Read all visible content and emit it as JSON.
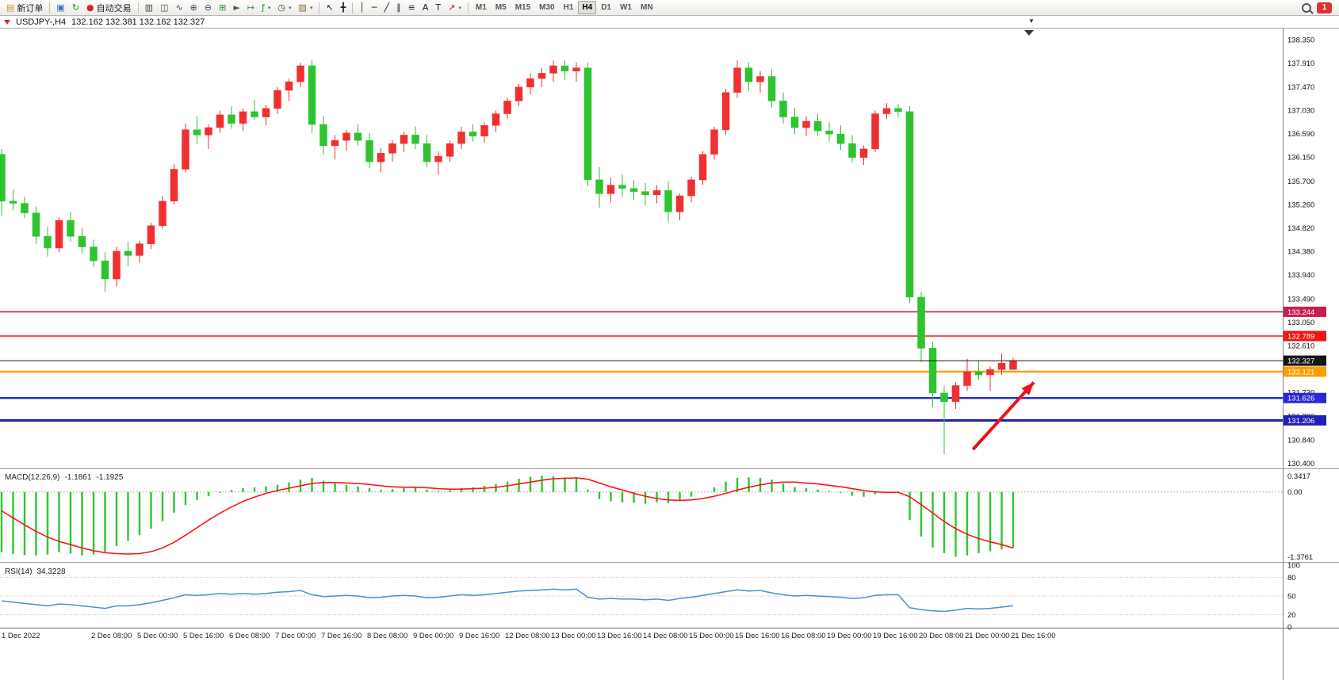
{
  "toolbar": {
    "new_order_label": "新订单",
    "autotrading_label": "自动交易",
    "notifications_count": "1",
    "timeframes": [
      "M1",
      "M5",
      "M15",
      "M30",
      "H1",
      "H4",
      "D1",
      "W1",
      "MN"
    ],
    "active_timeframe": "H4",
    "items": [
      {
        "type": "button",
        "name": "new-order-button",
        "icon": "new-order-icon",
        "glyph": "▤",
        "glyph_color": "#c59b2d",
        "label": "新订单"
      },
      {
        "type": "separator"
      },
      {
        "type": "button",
        "name": "charts-window-button",
        "icon": "chart-window-icon",
        "glyph": "▣",
        "glyph_color": "#3a6fc0"
      },
      {
        "type": "button",
        "name": "refresh-button",
        "icon": "refresh-icon",
        "glyph": "↻",
        "glyph_color": "#1f9e1f"
      },
      {
        "type": "button",
        "name": "autotrading-button",
        "icon": "autotrading-icon",
        "glyph": "●",
        "glyph_color": "#d42a2a",
        "label": "自动交易"
      },
      {
        "type": "separator"
      },
      {
        "type": "button",
        "name": "bar-chart-button",
        "icon": "bar-chart-icon",
        "glyph": "▥",
        "glyph_color": "#444444"
      },
      {
        "type": "button",
        "name": "candlestick-chart-button",
        "icon": "candlestick-icon",
        "glyph": "◫",
        "glyph_color": "#444444"
      },
      {
        "type": "button",
        "name": "line-chart-button",
        "icon": "line-chart-icon",
        "glyph": "∿",
        "glyph_color": "#444444"
      },
      {
        "type": "button",
        "name": "zoom-in-button",
        "icon": "zoom-in-icon",
        "glyph": "⊕",
        "glyph_color": "#444444"
      },
      {
        "type": "button",
        "name": "zoom-out-button",
        "icon": "zoom-out-icon",
        "glyph": "⊖",
        "glyph_color": "#444444"
      },
      {
        "type": "button",
        "name": "tile-windows-button",
        "icon": "tile-windows-icon",
        "glyph": "⊞",
        "glyph_color": "#2f8f2f"
      },
      {
        "type": "button",
        "name": "auto-scroll-button",
        "icon": "auto-scroll-icon",
        "glyph": "►",
        "glyph_color": "#555555"
      },
      {
        "type": "button",
        "name": "chart-shift-button",
        "icon": "chart-shift-icon",
        "glyph": "↦",
        "glyph_color": "#2f8f2f"
      },
      {
        "type": "button",
        "name": "indicators-button",
        "icon": "indicators-icon",
        "glyph": "ƒ",
        "glyph_color": "#1f9e1f",
        "caret": true
      },
      {
        "type": "button",
        "name": "periods-button",
        "icon": "clock-icon",
        "glyph": "◷",
        "glyph_color": "#444444",
        "caret": true
      },
      {
        "type": "button",
        "name": "templates-button",
        "icon": "template-icon",
        "glyph": "▧",
        "glyph_color": "#8a6d3b",
        "caret": true
      },
      {
        "type": "separator"
      },
      {
        "type": "button",
        "name": "cursor-button",
        "icon": "cursor-icon",
        "glyph": "↖",
        "glyph_color": "#222222"
      },
      {
        "type": "button",
        "name": "crosshair-button",
        "icon": "crosshair-icon",
        "glyph": "╋",
        "glyph_color": "#222222"
      },
      {
        "type": "separator"
      },
      {
        "type": "button",
        "name": "vertical-line-button",
        "icon": "vertical-line-icon",
        "glyph": "│",
        "glyph_color": "#222222"
      },
      {
        "type": "button",
        "name": "horizontal-line-button",
        "icon": "horizontal-line-icon",
        "glyph": "─",
        "glyph_color": "#222222"
      },
      {
        "type": "button",
        "name": "trendline-button",
        "icon": "trendline-icon",
        "glyph": "╱",
        "glyph_color": "#222222"
      },
      {
        "type": "button",
        "name": "channel-button",
        "icon": "channel-icon",
        "glyph": "∥",
        "glyph_color": "#222222"
      },
      {
        "type": "button",
        "name": "fibonacci-button",
        "icon": "fibonacci-icon",
        "glyph": "≡",
        "glyph_color": "#222222"
      },
      {
        "type": "button",
        "name": "text-button",
        "icon": "text-icon",
        "glyph": "A",
        "glyph_color": "#222222"
      },
      {
        "type": "button",
        "name": "text-label-button",
        "icon": "text-label-icon",
        "glyph": "T",
        "glyph_color": "#222222"
      },
      {
        "type": "button",
        "name": "arrows-button",
        "icon": "arrow-shapes-icon",
        "glyph": "↗",
        "glyph_color": "#b22222",
        "caret": true
      },
      {
        "type": "separator"
      }
    ]
  },
  "chart_header": {
    "symbol_period": "USDJPY-,H4",
    "ohlc": "132.162 132.381 132.162 132.327"
  },
  "chart_data": {
    "type": "candlestick",
    "symbol": "USDJPY-",
    "period": "H4",
    "colors": {
      "up": "#f03030",
      "down": "#2fc42f",
      "macd_histogram": "#2fc42f",
      "macd_signal": "#ff1414",
      "rsi_line": "#4a8fd4",
      "arrow": "#e81414"
    },
    "price_axis_labels": [
      "138.350",
      "137.910",
      "137.470",
      "137.030",
      "136.590",
      "136.150",
      "135.700",
      "135.260",
      "134.820",
      "134.380",
      "133.940",
      "133.490",
      "133.050",
      "132.610",
      "132.170",
      "131.730",
      "131.290",
      "130.840",
      "130.400"
    ],
    "hlines": [
      {
        "name": "resistance-line-1",
        "price": 133.244,
        "label": "133.244",
        "color": "#c81e50",
        "width": 1.6
      },
      {
        "name": "resistance-line-2",
        "price": 132.789,
        "label": "132.789",
        "color": "#f01515",
        "width": 1.6
      },
      {
        "name": "support-line-orange",
        "price": 132.121,
        "label": "132.121",
        "color": "#ff9c00",
        "width": 2.4
      },
      {
        "name": "support-line-1",
        "price": 131.626,
        "label": "131.626",
        "color": "#2828d8",
        "width": 2.4
      },
      {
        "name": "support-line-2",
        "price": 131.206,
        "label": "131.206",
        "color": "#2020b8",
        "width": 3
      }
    ],
    "current_price": {
      "price": 132.327,
      "label": "132.327",
      "color": "#141414"
    },
    "candles": [
      [
        136.2,
        136.3,
        135.05,
        135.32
      ],
      [
        135.32,
        135.55,
        135.15,
        135.28
      ],
      [
        135.28,
        135.4,
        135.0,
        135.1
      ],
      [
        135.1,
        135.22,
        134.52,
        134.66
      ],
      [
        134.66,
        134.84,
        134.28,
        134.44
      ],
      [
        134.44,
        135.02,
        134.36,
        134.96
      ],
      [
        134.96,
        135.12,
        134.56,
        134.66
      ],
      [
        134.66,
        134.82,
        134.34,
        134.46
      ],
      [
        134.46,
        134.6,
        134.08,
        134.2
      ],
      [
        134.2,
        134.36,
        133.62,
        133.86
      ],
      [
        133.86,
        134.46,
        133.72,
        134.38
      ],
      [
        134.38,
        134.56,
        134.1,
        134.3
      ],
      [
        134.3,
        134.58,
        134.16,
        134.52
      ],
      [
        134.52,
        134.92,
        134.42,
        134.86
      ],
      [
        134.86,
        135.42,
        134.8,
        135.32
      ],
      [
        135.32,
        136.02,
        135.26,
        135.92
      ],
      [
        135.92,
        136.78,
        135.86,
        136.66
      ],
      [
        136.66,
        136.92,
        136.4,
        136.56
      ],
      [
        136.56,
        136.76,
        136.3,
        136.7
      ],
      [
        136.7,
        137.02,
        136.6,
        136.94
      ],
      [
        136.94,
        137.1,
        136.68,
        136.78
      ],
      [
        136.78,
        137.06,
        136.64,
        137.0
      ],
      [
        137.0,
        137.22,
        136.84,
        136.9
      ],
      [
        136.9,
        137.12,
        136.74,
        137.06
      ],
      [
        137.06,
        137.46,
        136.96,
        137.4
      ],
      [
        137.4,
        137.62,
        137.2,
        137.56
      ],
      [
        137.56,
        137.92,
        137.46,
        137.86
      ],
      [
        137.86,
        137.96,
        136.6,
        136.76
      ],
      [
        136.76,
        136.92,
        136.2,
        136.36
      ],
      [
        136.36,
        136.56,
        136.1,
        136.46
      ],
      [
        136.46,
        136.66,
        136.26,
        136.6
      ],
      [
        136.6,
        136.76,
        136.36,
        136.46
      ],
      [
        136.46,
        136.6,
        135.94,
        136.06
      ],
      [
        136.06,
        136.32,
        135.86,
        136.22
      ],
      [
        136.22,
        136.46,
        136.06,
        136.4
      ],
      [
        136.4,
        136.62,
        136.24,
        136.56
      ],
      [
        136.56,
        136.72,
        136.3,
        136.4
      ],
      [
        136.4,
        136.56,
        135.96,
        136.06
      ],
      [
        136.06,
        136.26,
        135.82,
        136.16
      ],
      [
        136.16,
        136.46,
        136.06,
        136.4
      ],
      [
        136.4,
        136.72,
        136.3,
        136.62
      ],
      [
        136.62,
        136.76,
        136.44,
        136.54
      ],
      [
        136.54,
        136.8,
        136.42,
        136.74
      ],
      [
        136.74,
        137.02,
        136.62,
        136.96
      ],
      [
        136.96,
        137.26,
        136.86,
        137.2
      ],
      [
        137.2,
        137.52,
        137.1,
        137.46
      ],
      [
        137.46,
        137.72,
        137.32,
        137.62
      ],
      [
        137.62,
        137.82,
        137.46,
        137.72
      ],
      [
        137.72,
        137.96,
        137.56,
        137.86
      ],
      [
        137.86,
        137.96,
        137.6,
        137.76
      ],
      [
        137.76,
        137.92,
        137.56,
        137.82
      ],
      [
        137.82,
        137.92,
        135.6,
        135.72
      ],
      [
        135.72,
        135.96,
        135.2,
        135.46
      ],
      [
        135.46,
        135.76,
        135.3,
        135.62
      ],
      [
        135.62,
        135.82,
        135.4,
        135.56
      ],
      [
        135.56,
        135.72,
        135.34,
        135.5
      ],
      [
        135.5,
        135.66,
        135.24,
        135.44
      ],
      [
        135.44,
        135.62,
        135.28,
        135.52
      ],
      [
        135.52,
        135.7,
        134.94,
        135.12
      ],
      [
        135.12,
        135.46,
        134.96,
        135.42
      ],
      [
        135.42,
        135.78,
        135.3,
        135.72
      ],
      [
        135.72,
        136.26,
        135.62,
        136.2
      ],
      [
        136.2,
        136.72,
        136.1,
        136.66
      ],
      [
        136.66,
        137.42,
        136.56,
        137.36
      ],
      [
        137.36,
        137.96,
        137.26,
        137.82
      ],
      [
        137.82,
        137.92,
        137.4,
        137.56
      ],
      [
        137.56,
        137.76,
        137.36,
        137.66
      ],
      [
        137.66,
        137.8,
        137.08,
        137.2
      ],
      [
        137.2,
        137.36,
        136.78,
        136.9
      ],
      [
        136.9,
        137.06,
        136.58,
        136.7
      ],
      [
        136.7,
        136.92,
        136.54,
        136.82
      ],
      [
        136.82,
        136.96,
        136.54,
        136.64
      ],
      [
        136.64,
        136.8,
        136.44,
        136.58
      ],
      [
        136.58,
        136.74,
        136.28,
        136.4
      ],
      [
        136.4,
        136.56,
        136.04,
        136.14
      ],
      [
        136.14,
        136.36,
        136.0,
        136.3
      ],
      [
        136.3,
        137.02,
        136.24,
        136.96
      ],
      [
        136.96,
        137.16,
        136.86,
        137.06
      ],
      [
        137.06,
        137.14,
        136.9,
        137.0
      ],
      [
        137.0,
        137.1,
        133.4,
        133.52
      ],
      [
        133.52,
        133.62,
        132.3,
        132.56
      ],
      [
        132.56,
        132.68,
        131.46,
        131.72
      ],
      [
        131.72,
        131.86,
        130.57,
        131.56
      ],
      [
        131.56,
        131.92,
        131.42,
        131.86
      ],
      [
        131.86,
        132.36,
        131.76,
        132.12
      ],
      [
        132.12,
        132.32,
        131.96,
        132.06
      ],
      [
        132.06,
        132.22,
        131.76,
        132.16
      ],
      [
        132.16,
        132.46,
        132.06,
        132.28
      ],
      [
        132.162,
        132.381,
        132.162,
        132.327
      ]
    ],
    "time_labels": [
      [
        0,
        "1 Dec 2022"
      ],
      [
        8,
        "2 Dec 08:00"
      ],
      [
        12,
        "5 Dec 00:00"
      ],
      [
        16,
        "5 Dec 16:00"
      ],
      [
        20,
        "6 Dec 08:00"
      ],
      [
        24,
        "7 Dec 00:00"
      ],
      [
        28,
        "7 Dec 16:00"
      ],
      [
        32,
        "8 Dec 08:00"
      ],
      [
        36,
        "9 Dec 00:00"
      ],
      [
        40,
        "9 Dec 16:00"
      ],
      [
        44,
        "12 Dec 08:00"
      ],
      [
        48,
        "13 Dec 00:00"
      ],
      [
        52,
        "13 Dec 16:00"
      ],
      [
        56,
        "14 Dec 08:00"
      ],
      [
        60,
        "15 Dec 00:00"
      ],
      [
        64,
        "15 Dec 16:00"
      ],
      [
        68,
        "16 Dec 08:00"
      ],
      [
        72,
        "19 Dec 00:00"
      ],
      [
        76,
        "19 Dec 16:00"
      ],
      [
        80,
        "20 Dec 08:00"
      ],
      [
        84,
        "21 Dec 00:00"
      ],
      [
        88,
        "21 Dec 16:00"
      ]
    ],
    "macd": {
      "title": "MACD(12,26,9)",
      "value_main": "-1.1861",
      "value_signal": "-1.1925",
      "axis_labels": [
        {
          "v": 0.3417,
          "t": "0.3417"
        },
        {
          "v": 0,
          "t": "0.00"
        },
        {
          "v": -1.3761,
          "t": "-1.3761"
        }
      ],
      "histogram": [
        -1.28,
        -1.32,
        -1.34,
        -1.35,
        -1.33,
        -1.28,
        -1.31,
        -1.35,
        -1.33,
        -1.27,
        -1.15,
        -1.04,
        -0.92,
        -0.78,
        -0.62,
        -0.44,
        -0.28,
        -0.17,
        -0.09,
        -0.02,
        0.04,
        0.08,
        0.1,
        0.12,
        0.15,
        0.2,
        0.26,
        0.3,
        0.24,
        0.18,
        0.15,
        0.12,
        0.08,
        0.05,
        0.06,
        0.08,
        0.09,
        0.05,
        0.02,
        0.04,
        0.08,
        0.1,
        0.13,
        0.17,
        0.22,
        0.28,
        0.32,
        0.3417,
        0.33,
        0.31,
        0.29,
        0.05,
        -0.15,
        -0.2,
        -0.22,
        -0.23,
        -0.25,
        -0.22,
        -0.24,
        -0.18,
        -0.1,
        0.0,
        0.1,
        0.22,
        0.3,
        0.31,
        0.3,
        0.26,
        0.18,
        0.1,
        0.08,
        0.05,
        0.02,
        -0.02,
        -0.08,
        -0.1,
        -0.05,
        0.0,
        0.01,
        -0.6,
        -0.95,
        -1.18,
        -1.3,
        -1.3761,
        -1.35,
        -1.3,
        -1.26,
        -1.22,
        -1.1861
      ],
      "signal": [
        -0.4,
        -0.55,
        -0.7,
        -0.84,
        -0.96,
        -1.05,
        -1.12,
        -1.19,
        -1.25,
        -1.29,
        -1.31,
        -1.32,
        -1.31,
        -1.27,
        -1.19,
        -1.07,
        -0.92,
        -0.76,
        -0.6,
        -0.45,
        -0.32,
        -0.2,
        -0.11,
        -0.03,
        0.03,
        0.08,
        0.13,
        0.18,
        0.2,
        0.2,
        0.19,
        0.18,
        0.16,
        0.13,
        0.11,
        0.1,
        0.1,
        0.09,
        0.07,
        0.06,
        0.06,
        0.07,
        0.08,
        0.1,
        0.13,
        0.17,
        0.21,
        0.25,
        0.28,
        0.29,
        0.3,
        0.27,
        0.19,
        0.11,
        0.04,
        -0.03,
        -0.09,
        -0.14,
        -0.17,
        -0.18,
        -0.17,
        -0.14,
        -0.09,
        -0.03,
        0.04,
        0.1,
        0.15,
        0.19,
        0.21,
        0.21,
        0.19,
        0.17,
        0.14,
        0.11,
        0.07,
        0.03,
        0.0,
        -0.01,
        -0.01,
        -0.1,
        -0.27,
        -0.45,
        -0.63,
        -0.78,
        -0.9,
        -0.99,
        -1.06,
        -1.12,
        -1.1925
      ]
    },
    "rsi": {
      "title": "RSI(14)",
      "value": "34.3228",
      "axis_labels": [
        {
          "v": 100,
          "t": "100"
        },
        {
          "v": 80,
          "t": "80"
        },
        {
          "v": 50,
          "t": "50"
        },
        {
          "v": 20,
          "t": "20"
        },
        {
          "v": 0,
          "t": "0"
        }
      ],
      "levels": [
        80,
        50,
        20
      ],
      "values": [
        42,
        40,
        38,
        36,
        34,
        37,
        36,
        34,
        32,
        30,
        34,
        34,
        36,
        39,
        43,
        47,
        52,
        51,
        52,
        54,
        53,
        54,
        53,
        54,
        56,
        57,
        59,
        52,
        49,
        50,
        51,
        50,
        47,
        48,
        50,
        51,
        50,
        47,
        48,
        50,
        52,
        51,
        52,
        54,
        56,
        58,
        59,
        60,
        61,
        60,
        61,
        48,
        45,
        46,
        45,
        45,
        44,
        45,
        43,
        46,
        48,
        51,
        54,
        57,
        60,
        58,
        59,
        55,
        52,
        50,
        51,
        50,
        49,
        48,
        46,
        47,
        51,
        52,
        52,
        31,
        28,
        26,
        25,
        27,
        30,
        29,
        30,
        32,
        34.3
      ]
    },
    "arrow": {
      "name": "trend-arrow",
      "color": "#e81414",
      "from": {
        "candle": 84.5,
        "price": 130.66
      },
      "to": {
        "candle": 89.8,
        "price": 131.92
      }
    }
  }
}
